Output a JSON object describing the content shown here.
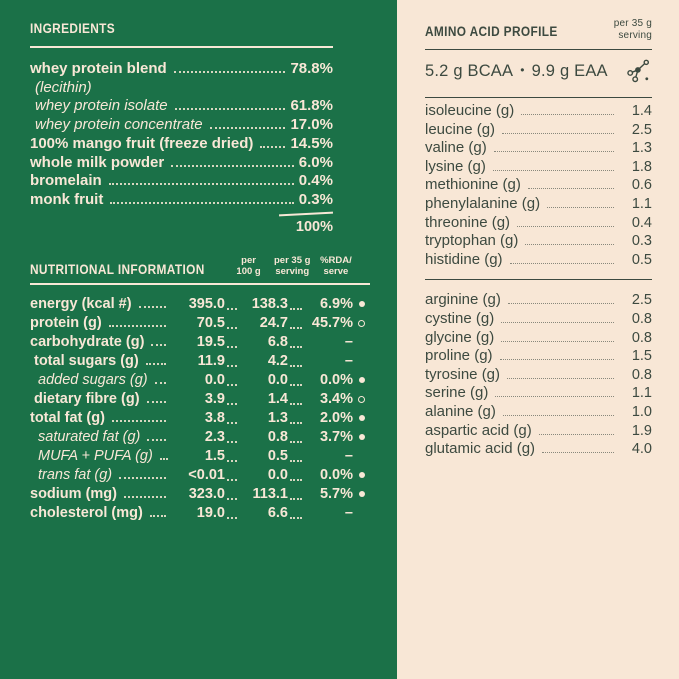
{
  "colors": {
    "panel_green": "#1b7148",
    "panel_cream": "#f8e7d6",
    "text_on_green": "#f8e7d6",
    "text_on_cream": "#3d4a40"
  },
  "ingredients": {
    "title": "INGREDIENTS",
    "items": [
      {
        "label": "whey protein blend",
        "value": "78.8%",
        "italic": false,
        "indent": 0
      },
      {
        "label": "(lecithin)",
        "value": "",
        "italic": true,
        "indent": 1
      },
      {
        "label": "whey protein isolate",
        "value": "61.8%",
        "italic": true,
        "indent": 1
      },
      {
        "label": "whey protein concentrate",
        "value": "17.0%",
        "italic": true,
        "indent": 1
      },
      {
        "label": "100% mango fruit (freeze dried)",
        "value": "14.5%",
        "italic": false,
        "indent": 0
      },
      {
        "label": "whole milk powder",
        "value": "6.0%",
        "italic": false,
        "indent": 0
      },
      {
        "label": "bromelain",
        "value": "0.4%",
        "italic": false,
        "indent": 0
      },
      {
        "label": "monk fruit",
        "value": "0.3%",
        "italic": false,
        "indent": 0
      }
    ],
    "total": "100%"
  },
  "nutrition": {
    "title": "NUTRITIONAL INFORMATION",
    "headers": {
      "per100": "per\n100 g",
      "per35": "per 35 g\nserving",
      "rda": "%RDA/\nserve"
    },
    "rows": [
      {
        "label": "energy (kcal #)",
        "per100": "395.0",
        "per35": "138.3",
        "rda": "6.9%",
        "marker": "filled",
        "italic": false,
        "indent": 0
      },
      {
        "label": "protein (g)",
        "per100": "70.5",
        "per35": "24.7",
        "rda": "45.7%",
        "marker": "hollow",
        "italic": false,
        "indent": 0
      },
      {
        "label": "carbohydrate (g)",
        "per100": "19.5",
        "per35": "6.8",
        "rda": "–",
        "marker": "none",
        "italic": false,
        "indent": 0
      },
      {
        "label": "total sugars (g)",
        "per100": "11.9",
        "per35": "4.2",
        "rda": "–",
        "marker": "none",
        "italic": false,
        "indent": 1
      },
      {
        "label": "added sugars (g)",
        "per100": "0.0",
        "per35": "0.0",
        "rda": "0.0%",
        "marker": "filled",
        "italic": true,
        "indent": 2
      },
      {
        "label": "dietary fibre (g)",
        "per100": "3.9",
        "per35": "1.4",
        "rda": "3.4%",
        "marker": "hollow",
        "italic": false,
        "indent": 1
      },
      {
        "label": "total fat (g)",
        "per100": "3.8",
        "per35": "1.3",
        "rda": "2.0%",
        "marker": "filled",
        "italic": false,
        "indent": 0
      },
      {
        "label": "saturated fat (g)",
        "per100": "2.3",
        "per35": "0.8",
        "rda": "3.7%",
        "marker": "filled",
        "italic": true,
        "indent": 2
      },
      {
        "label": "MUFA + PUFA (g)",
        "per100": "1.5",
        "per35": "0.5",
        "rda": "–",
        "marker": "none",
        "italic": true,
        "indent": 2
      },
      {
        "label": "trans fat (g)",
        "per100": "<0.01",
        "per35": "0.0",
        "rda": "0.0%",
        "marker": "filled",
        "italic": true,
        "indent": 2
      },
      {
        "label": "sodium (mg)",
        "per100": "323.0",
        "per35": "113.1",
        "rda": "5.7%",
        "marker": "filled",
        "italic": false,
        "indent": 0
      },
      {
        "label": "cholesterol (mg)",
        "per100": "19.0",
        "per35": "6.6",
        "rda": "–",
        "marker": "none",
        "italic": false,
        "indent": 0
      }
    ]
  },
  "amino": {
    "title": "AMINO ACID PROFILE",
    "serving_note": "per 35 g\nserving",
    "summary": {
      "left": "5.2 g BCAA",
      "separator": "•",
      "right": "9.9 g EAA"
    },
    "icon": "molecule-icon",
    "essential": [
      {
        "label": "isoleucine (g)",
        "value": "1.4"
      },
      {
        "label": "leucine (g)",
        "value": "2.5"
      },
      {
        "label": "valine (g)",
        "value": "1.3"
      },
      {
        "label": "lysine (g)",
        "value": "1.8"
      },
      {
        "label": "methionine (g)",
        "value": "0.6"
      },
      {
        "label": "phenylalanine (g)",
        "value": "1.1"
      },
      {
        "label": "threonine (g)",
        "value": "0.4"
      },
      {
        "label": "tryptophan (g)",
        "value": "0.3"
      },
      {
        "label": "histidine (g)",
        "value": "0.5"
      }
    ],
    "non_essential": [
      {
        "label": "arginine (g)",
        "value": "2.5"
      },
      {
        "label": "cystine (g)",
        "value": "0.8"
      },
      {
        "label": "glycine (g)",
        "value": "0.8"
      },
      {
        "label": "proline (g)",
        "value": "1.5"
      },
      {
        "label": "tyrosine (g)",
        "value": "0.8"
      },
      {
        "label": "serine (g)",
        "value": "1.1"
      },
      {
        "label": "alanine (g)",
        "value": "1.0"
      },
      {
        "label": "aspartic acid (g)",
        "value": "1.9"
      },
      {
        "label": "glutamic acid (g)",
        "value": "4.0"
      }
    ]
  }
}
